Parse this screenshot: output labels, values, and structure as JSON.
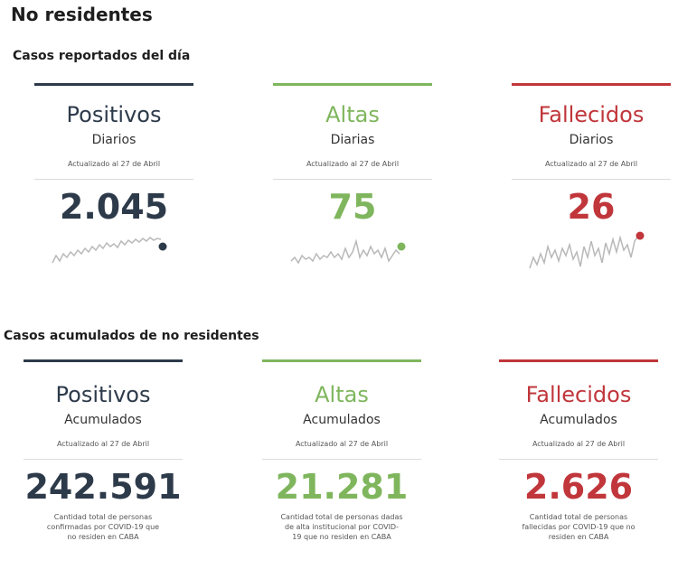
{
  "page_title": "No residentes",
  "daily_section": {
    "title": "Casos reportados del día",
    "cards": [
      {
        "label": "Positivos",
        "sub": "Diarios",
        "updated": "Actualizado al 27 de Abril",
        "value": "2.045",
        "color": "#2d3a4a"
      },
      {
        "label": "Altas",
        "sub": "Diarias",
        "updated": "Actualizado al 27 de Abril",
        "value": "75",
        "color": "#7fb65d"
      },
      {
        "label": "Fallecidos",
        "sub": "Diarios",
        "updated": "Actualizado al 27 de Abril",
        "value": "26",
        "color": "#c0363b"
      }
    ]
  },
  "cumulative_section": {
    "title": "Casos acumulados de no residentes",
    "cards": [
      {
        "label": "Positivos",
        "sub": "Acumulados",
        "updated": "Actualizado al 27 de Abril",
        "value": "242.591",
        "desc": "Cantidad total de personas confirmadas por COVID-19 que no residen en CABA",
        "color": "#2d3a4a"
      },
      {
        "label": "Altas",
        "sub": "Acumulados",
        "updated": "Actualizado al 27 de Abril",
        "value": "21.281",
        "desc": "Cantidad total de personas dadas de alta institucional por COVID-19 que no residen en CABA",
        "color": "#7fb65d"
      },
      {
        "label": "Fallecidos",
        "sub": "Acumulados",
        "updated": "Actualizado al 27 de Abril",
        "value": "2.626",
        "desc": "Cantidad total de personas fallecidas por COVID-19 que no residen en CABA",
        "color": "#c0363b"
      }
    ]
  }
}
